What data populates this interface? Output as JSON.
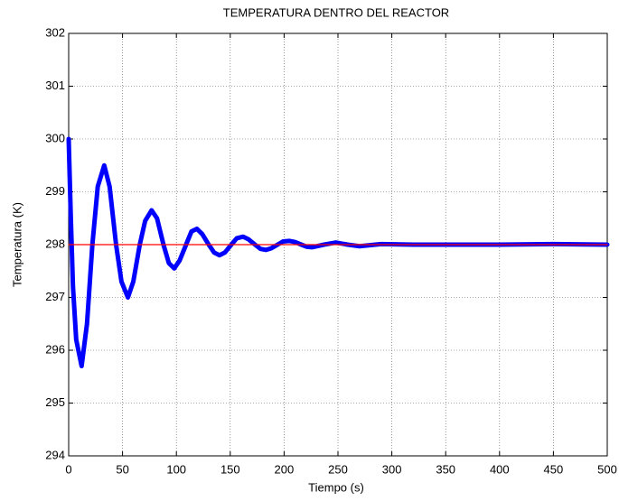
{
  "chart_data": {
    "type": "line",
    "title": "TEMPERATURA DENTRO DEL REACTOR",
    "x_label": "Tiempo (s)",
    "y_label": "Temperatura (K)",
    "xlim": [
      0,
      500
    ],
    "ylim": [
      294,
      302
    ],
    "xticks": [
      0,
      50,
      100,
      150,
      200,
      250,
      300,
      350,
      400,
      450,
      500
    ],
    "yticks": [
      294,
      295,
      296,
      297,
      298,
      299,
      300,
      301,
      302
    ],
    "grid": true,
    "series": [
      {
        "color": "#0000ff",
        "x": [
          0,
          2,
          4,
          7,
          12,
          17,
          22,
          27,
          33,
          38,
          44,
          49,
          55,
          60,
          66,
          71,
          77,
          82,
          88,
          93,
          98,
          103,
          109,
          114,
          119,
          124,
          130,
          135,
          140,
          145,
          151,
          156,
          162,
          167,
          173,
          178,
          183,
          188,
          194,
          199,
          205,
          210,
          216,
          221,
          226,
          237,
          248,
          259,
          270,
          290,
          320,
          360,
          400,
          450,
          500
        ],
        "values": [
          300,
          298.5,
          297.2,
          296.2,
          295.7,
          296.5,
          298.0,
          299.1,
          299.5,
          299.1,
          298.0,
          297.3,
          297.0,
          297.3,
          298.0,
          298.45,
          298.65,
          298.5,
          298.0,
          297.65,
          297.55,
          297.7,
          298.0,
          298.25,
          298.3,
          298.2,
          298.0,
          297.85,
          297.8,
          297.85,
          298.0,
          298.12,
          298.15,
          298.1,
          298.0,
          297.92,
          297.9,
          297.93,
          298.0,
          298.06,
          298.07,
          298.05,
          298.0,
          297.96,
          297.95,
          298.0,
          298.04,
          298.0,
          297.97,
          298.01,
          298.0,
          298.0,
          298.0,
          298.01,
          298.0
        ]
      },
      {
        "color": "#ff0000",
        "x": [
          0,
          500
        ],
        "values": [
          298,
          298
        ]
      }
    ]
  }
}
